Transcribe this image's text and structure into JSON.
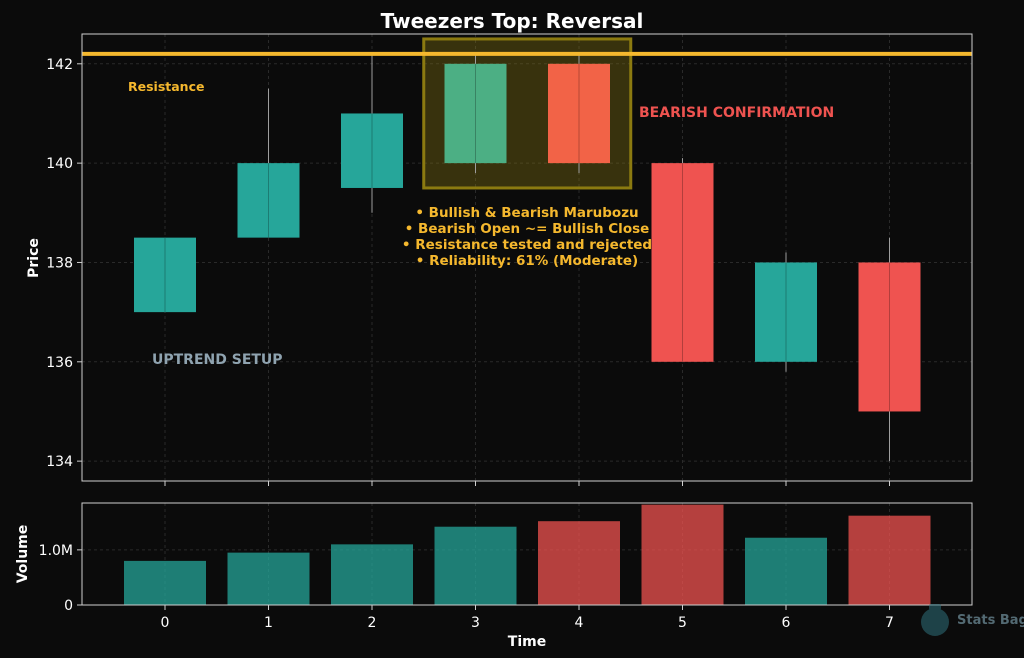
{
  "chart_data": {
    "type": "candlestick",
    "title": "Tweezers Top: Reversal",
    "xlabel": "Time",
    "ylabel_price": "Price",
    "ylabel_volume": "Volume",
    "x": [
      0,
      1,
      2,
      3,
      4,
      5,
      6,
      7
    ],
    "price_ylim": [
      133.6,
      142.6
    ],
    "price_yticks": [
      134,
      136,
      138,
      140,
      142
    ],
    "volume_ylim": [
      0,
      1850000
    ],
    "volume_yticks": [
      {
        "value": 0,
        "label": "0"
      },
      {
        "value": 1000000,
        "label": "1.0M"
      }
    ],
    "candles": [
      {
        "open": 137.0,
        "high": 138.5,
        "low": 137.0,
        "close": 138.5
      },
      {
        "open": 138.5,
        "high": 141.5,
        "low": 138.5,
        "close": 140.0
      },
      {
        "open": 139.5,
        "high": 142.2,
        "low": 139.0,
        "close": 141.0
      },
      {
        "open": 140.0,
        "high": 142.2,
        "low": 139.8,
        "close": 142.0
      },
      {
        "open": 142.0,
        "high": 142.2,
        "low": 139.8,
        "close": 140.0
      },
      {
        "open": 140.0,
        "high": 140.1,
        "low": 136.0,
        "close": 136.0
      },
      {
        "open": 136.0,
        "high": 138.2,
        "low": 135.8,
        "close": 138.0
      },
      {
        "open": 138.0,
        "high": 138.5,
        "low": 134.0,
        "close": 135.0
      }
    ],
    "volume": [
      800000,
      950000,
      1100000,
      1420000,
      1520000,
      1820000,
      1220000,
      1620000
    ],
    "resistance": {
      "value": 142.2,
      "label": "Resistance"
    },
    "highlight": {
      "x_from": 2.5,
      "x_to": 4.5,
      "y_from": 139.5,
      "y_to": 142.5
    },
    "annotations": {
      "uptrend": "UPTREND SETUP",
      "confirmation": "BEARISH CONFIRMATION",
      "notes": [
        "• Bullish & Bearish Marubozu",
        "• Bearish Open ~= Bullish Close",
        "• Resistance tested and rejected",
        "• Reliability: 61% (Moderate)"
      ]
    },
    "colors": {
      "bull": "#26a69a",
      "bear": "#ef5350",
      "tweezer_bull": "#4caf84",
      "tweezer_bear": "#f26347",
      "resistance": "#f5b82e",
      "annotation": "#f5b82e",
      "confirmation": "#ef5350",
      "uptrend": "#8fa3b0",
      "highlight": "#8b7a10",
      "wick": "#9e9e9e"
    }
  },
  "watermark": {
    "text": "Stats Bag"
  }
}
